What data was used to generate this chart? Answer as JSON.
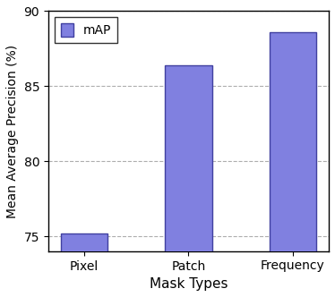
{
  "categories": [
    "Pixel",
    "Patch",
    "Frequency"
  ],
  "values": [
    75.2,
    86.4,
    88.6
  ],
  "bar_color": "#8080e0",
  "bar_edgecolor": "#4040a0",
  "title": "",
  "xlabel": "Mask Types",
  "ylabel": "Mean Average Precision (%)",
  "ylim": [
    74,
    90
  ],
  "yticks": [
    75,
    80,
    85,
    90
  ],
  "legend_label": "mAP",
  "grid_color": "#999999",
  "grid_linestyle": "--",
  "grid_alpha": 0.8,
  "bar_width": 0.45,
  "xlabel_fontsize": 11,
  "ylabel_fontsize": 10,
  "tick_fontsize": 10,
  "legend_fontsize": 10
}
